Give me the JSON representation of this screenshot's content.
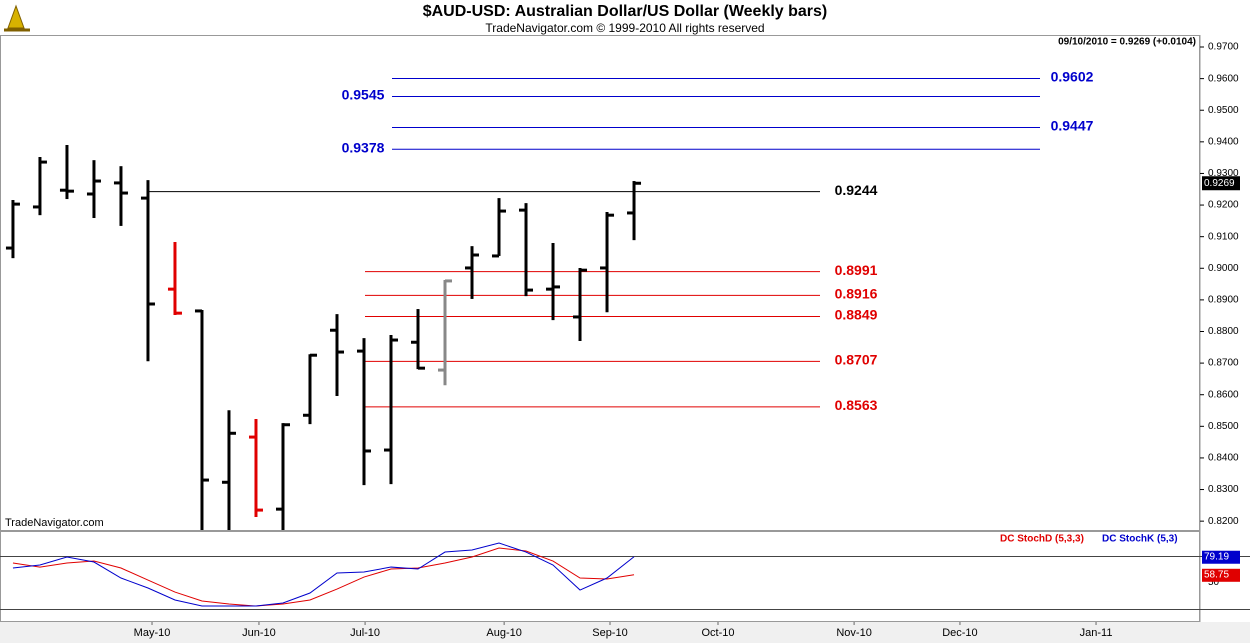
{
  "chart_data": [
    {
      "type": "ohlc",
      "title": "$AUD-USD:  Australian Dollar/US Dollar  (Weekly bars)",
      "subtitle": "TradeNavigator.com © 1999-2010 All rights reserved",
      "info": "09/10/2010 = 0.9269 (+0.0104)",
      "watermark": "TradeNavigator.com",
      "x": [
        0,
        1,
        2,
        3,
        4,
        5,
        6,
        7,
        8,
        9,
        10,
        11,
        12,
        13,
        14,
        15,
        16,
        17,
        18,
        19,
        20,
        21,
        22,
        23
      ],
      "open": [
        0.9064,
        0.9194,
        0.9247,
        0.9235,
        0.927,
        0.9222,
        0.8934,
        0.8865,
        0.8323,
        0.8466,
        0.8238,
        0.8535,
        0.8804,
        0.8738,
        0.8425,
        0.8766,
        0.8678,
        0.9001,
        0.9039,
        0.9184,
        0.8934,
        0.8846,
        0.9001,
        0.9175
      ],
      "high": [
        0.9216,
        0.9352,
        0.939,
        0.9342,
        0.9323,
        0.9279,
        0.9083,
        0.8868,
        0.8551,
        0.8523,
        0.851,
        0.8728,
        0.8855,
        0.8779,
        0.8789,
        0.8871,
        0.8963,
        0.907,
        0.9222,
        0.9206,
        0.908,
        0.9001,
        0.9178,
        0.9276
      ],
      "low": [
        0.9032,
        0.9168,
        0.9219,
        0.9159,
        0.9134,
        0.8706,
        0.8852,
        0.815,
        0.816,
        0.8213,
        0.8165,
        0.8507,
        0.8596,
        0.8314,
        0.8317,
        0.8681,
        0.863,
        0.8903,
        0.9039,
        0.8912,
        0.8836,
        0.877,
        0.8861,
        0.9089
      ],
      "close": [
        0.9203,
        0.9336,
        0.9244,
        0.9276,
        0.9238,
        0.8887,
        0.8858,
        0.833,
        0.8478,
        0.8235,
        0.8505,
        0.8725,
        0.8735,
        0.8422,
        0.8773,
        0.8684,
        0.896,
        0.9042,
        0.9181,
        0.8931,
        0.8941,
        0.8994,
        0.9168,
        0.9269
      ],
      "colors": [
        "#000000",
        "#000000",
        "#000000",
        "#000000",
        "#000000",
        "#000000",
        "#e00000",
        "#000000",
        "#000000",
        "#e00000",
        "#000000",
        "#000000",
        "#000000",
        "#000000",
        "#000000",
        "#000000",
        "#888888",
        "#000000",
        "#000000",
        "#000000",
        "#000000",
        "#000000",
        "#000000",
        "#000000"
      ],
      "last_value": 0.9269,
      "levels": [
        {
          "value": 0.9602,
          "color": "#0000cc"
        },
        {
          "value": 0.9545,
          "color": "#0000cc"
        },
        {
          "value": 0.9447,
          "color": "#0000cc"
        },
        {
          "value": 0.9378,
          "color": "#0000cc"
        },
        {
          "value": 0.9244,
          "color": "#000000"
        },
        {
          "value": 0.8991,
          "color": "#e00000"
        },
        {
          "value": 0.8916,
          "color": "#e00000"
        },
        {
          "value": 0.8849,
          "color": "#e00000"
        },
        {
          "value": 0.8707,
          "color": "#e00000"
        },
        {
          "value": 0.8563,
          "color": "#e00000"
        }
      ],
      "xlim": [
        -0.48,
        43.96
      ],
      "xticks": [
        {
          "value": 5.15,
          "label": "May-10"
        },
        {
          "value": 9.11,
          "label": "Jun-10"
        },
        {
          "value": 13.04,
          "label": "Jul-10"
        },
        {
          "value": 18.19,
          "label": "Aug-10"
        },
        {
          "value": 22.11,
          "label": "Sep-10"
        },
        {
          "value": 26.11,
          "label": "Oct-10"
        },
        {
          "value": 31.15,
          "label": "Nov-10"
        },
        {
          "value": 35.07,
          "label": "Dec-10"
        },
        {
          "value": 40.11,
          "label": "Jan-11"
        }
      ],
      "ylim": [
        0.8172,
        0.9738
      ],
      "yticks": [
        {
          "value": 0.97,
          "label": "0.9700"
        },
        {
          "value": 0.96,
          "label": "0.9600"
        },
        {
          "value": 0.95,
          "label": "0.9500"
        },
        {
          "value": 0.94,
          "label": "0.9400"
        },
        {
          "value": 0.93,
          "label": "0.9300"
        },
        {
          "value": 0.92,
          "label": "0.9200"
        },
        {
          "value": 0.91,
          "label": "0.9100"
        },
        {
          "value": 0.9,
          "label": "0.9000"
        },
        {
          "value": 0.89,
          "label": "0.8900"
        },
        {
          "value": 0.88,
          "label": "0.8800"
        },
        {
          "value": 0.87,
          "label": "0.8700"
        },
        {
          "value": 0.86,
          "label": "0.8600"
        },
        {
          "value": 0.85,
          "label": "0.8500"
        },
        {
          "value": 0.84,
          "label": "0.8400"
        },
        {
          "value": 0.83,
          "label": "0.8300"
        },
        {
          "value": 0.82,
          "label": "0.8200"
        }
      ]
    },
    {
      "type": "line",
      "x": [
        0,
        1,
        2,
        3,
        4,
        5,
        6,
        7,
        8,
        9,
        10,
        11,
        12,
        13,
        14,
        15,
        16,
        17,
        18,
        19,
        20,
        21,
        22,
        23
      ],
      "series": [
        {
          "name": "DC StochD (5,3,3)",
          "color": "#e00000",
          "values": [
            72.1,
            67.5,
            72.1,
            74.3,
            66.4,
            52.8,
            39.2,
            29.1,
            25.7,
            23.4,
            25.7,
            30.2,
            42.6,
            56.2,
            65.3,
            66.4,
            72.1,
            78.9,
            89.1,
            85.7,
            74.3,
            55.1,
            54.0,
            58.75
          ]
        },
        {
          "name": "DC StochK (5,3)",
          "color": "#0000cc",
          "values": [
            66.4,
            69.8,
            78.9,
            73.2,
            55.1,
            43.8,
            30.2,
            23.4,
            23.4,
            23.4,
            26.8,
            38.1,
            60.8,
            61.9,
            67.5,
            65.3,
            84.5,
            86.8,
            94.7,
            84.5,
            69.8,
            41.5,
            55.1,
            79.19
          ]
        }
      ],
      "ylim": [
        5.3,
        107.2
      ],
      "yticks": [
        50
      ],
      "levels": [
        80,
        20
      ]
    }
  ]
}
